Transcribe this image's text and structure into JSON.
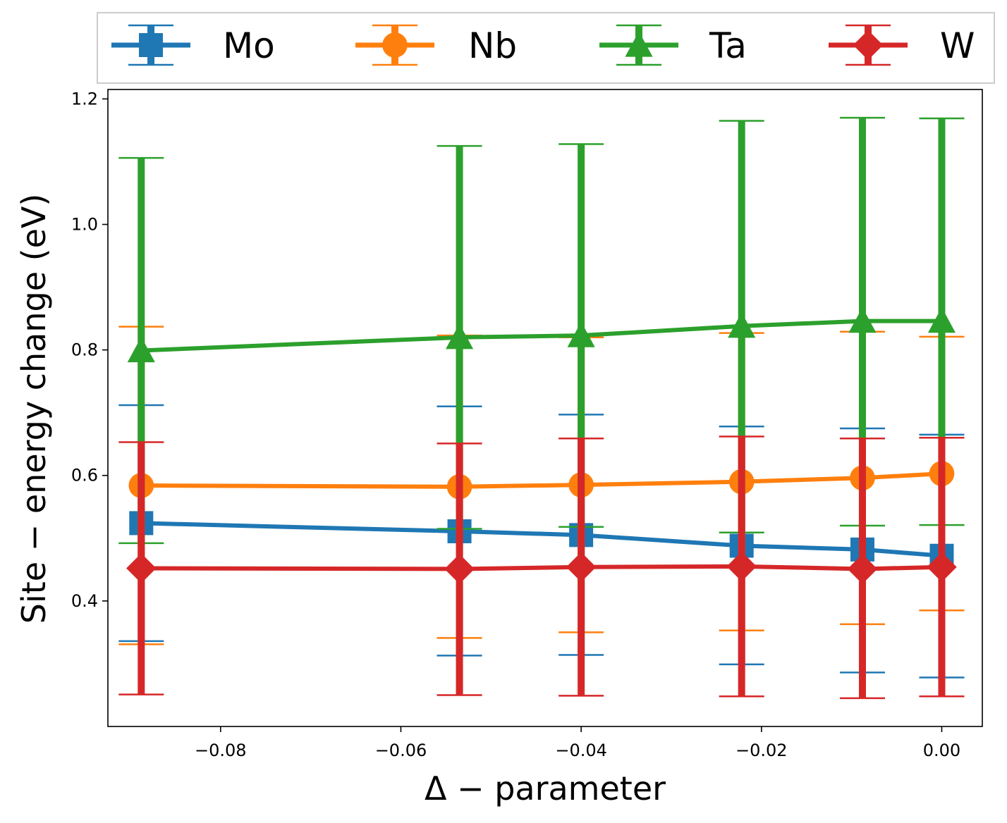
{
  "chart_data": {
    "type": "line",
    "xlabel": "Δ − parameter",
    "ylabel": "Site − energy change (eV)",
    "xlim": [
      -0.0925,
      0.0045
    ],
    "ylim": [
      0.2,
      1.215
    ],
    "xticks": [
      -0.08,
      -0.06,
      -0.04,
      -0.02,
      0.0
    ],
    "xtick_labels": [
      "−0.08",
      "−0.06",
      "−0.04",
      "−0.02",
      "0.00"
    ],
    "yticks": [
      0.4,
      0.6,
      0.8,
      1.0,
      1.2
    ],
    "ytick_labels": [
      "0.4",
      "0.6",
      "0.8",
      "1.0",
      "1.2"
    ],
    "legend_position": "top, outside plot area",
    "x": [
      -0.0888,
      -0.0535,
      -0.04,
      -0.0222,
      -0.0088,
      0.0
    ],
    "series": [
      {
        "name": "Mo",
        "color": "#1f77b4",
        "marker": "square",
        "values": [
          0.524,
          0.511,
          0.505,
          0.488,
          0.482,
          0.472
        ],
        "err_lower": [
          0.336,
          0.313,
          0.314,
          0.299,
          0.286,
          0.278
        ],
        "err_upper": [
          0.712,
          0.71,
          0.697,
          0.678,
          0.675,
          0.665
        ]
      },
      {
        "name": "Nb",
        "color": "#ff7f0e",
        "marker": "circle",
        "values": [
          0.584,
          0.582,
          0.585,
          0.59,
          0.596,
          0.603
        ],
        "err_lower": [
          0.331,
          0.341,
          0.35,
          0.353,
          0.363,
          0.385
        ],
        "err_upper": [
          0.837,
          0.823,
          0.82,
          0.827,
          0.829,
          0.821
        ]
      },
      {
        "name": "Ta",
        "color": "#2ca02c",
        "marker": "triangle",
        "values": [
          0.799,
          0.82,
          0.823,
          0.838,
          0.846,
          0.846
        ],
        "err_lower": [
          0.492,
          0.515,
          0.518,
          0.509,
          0.52,
          0.521
        ],
        "err_upper": [
          1.106,
          1.125,
          1.128,
          1.165,
          1.17,
          1.169
        ]
      },
      {
        "name": "W",
        "color": "#d62728",
        "marker": "diamond",
        "values": [
          0.452,
          0.451,
          0.454,
          0.455,
          0.451,
          0.454
        ],
        "err_lower": [
          0.251,
          0.25,
          0.249,
          0.248,
          0.245,
          0.248
        ],
        "err_upper": [
          0.653,
          0.651,
          0.659,
          0.662,
          0.659,
          0.66
        ]
      }
    ]
  }
}
